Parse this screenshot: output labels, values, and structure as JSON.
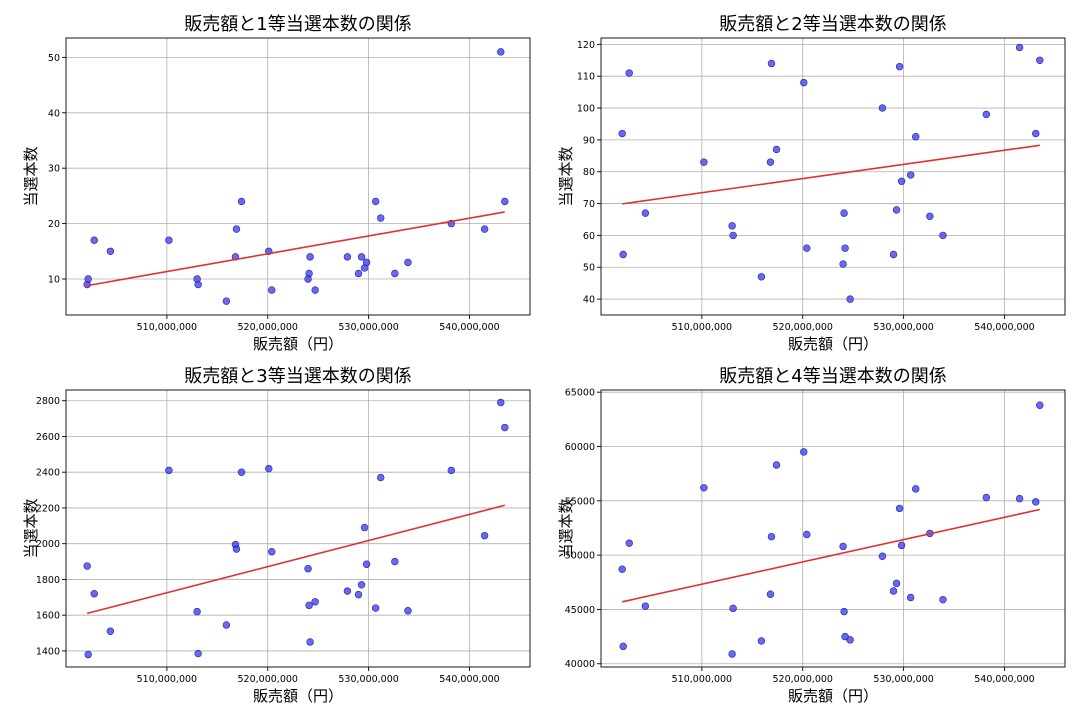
{
  "figure": {
    "xlabel": "販売額（円）",
    "ylabel": "当選本数",
    "point_color": "#3f3fe6",
    "line_color": "#e03030",
    "grid_color": "#b0b0b0"
  },
  "chart_data": [
    {
      "type": "scatter",
      "title": "販売額と1等当選本数の関係",
      "xlabel": "販売額（円）",
      "ylabel": "当選本数",
      "xlim": [
        500000000,
        546000000
      ],
      "ylim": [
        3.5,
        53.5
      ],
      "xticks": [
        510000000,
        520000000,
        530000000,
        540000000
      ],
      "xtick_labels": [
        "510,000,000",
        "520,000,000",
        "530,000,000",
        "540,000,000"
      ],
      "yticks": [
        10,
        20,
        30,
        40,
        50
      ],
      "ytick_labels": [
        "10",
        "20",
        "30",
        "40",
        "50"
      ],
      "grid": true,
      "x": [
        502100000,
        502200000,
        502800000,
        504400000,
        510200000,
        513000000,
        513100000,
        515900000,
        516800000,
        516900000,
        517400000,
        520100000,
        520400000,
        524000000,
        524100000,
        524200000,
        524700000,
        527900000,
        529000000,
        529300000,
        529600000,
        529800000,
        530700000,
        531200000,
        532600000,
        533900000,
        538200000,
        541500000,
        543100000,
        543500000
      ],
      "y": [
        9,
        10,
        17,
        15,
        17,
        10,
        9,
        6,
        14,
        19,
        24,
        15,
        8,
        10,
        11,
        14,
        8,
        14,
        11,
        14,
        12,
        13,
        24,
        21,
        11,
        13,
        20,
        19,
        51,
        24
      ],
      "trend": {
        "x0": 502100000,
        "y0": 8.8,
        "x1": 543500000,
        "y1": 22.1
      }
    },
    {
      "type": "scatter",
      "title": "販売額と2等当選本数の関係",
      "xlabel": "販売額（円）",
      "ylabel": "当選本数",
      "xlim": [
        500000000,
        546000000
      ],
      "ylim": [
        35,
        122
      ],
      "xticks": [
        510000000,
        520000000,
        530000000,
        540000000
      ],
      "xtick_labels": [
        "510,000,000",
        "520,000,000",
        "530,000,000",
        "540,000,000"
      ],
      "yticks": [
        40,
        50,
        60,
        70,
        80,
        90,
        100,
        110,
        120
      ],
      "ytick_labels": [
        "40",
        "50",
        "60",
        "70",
        "80",
        "90",
        "100",
        "110",
        "120"
      ],
      "grid": true,
      "x": [
        502100000,
        502200000,
        502800000,
        504400000,
        510200000,
        513000000,
        513100000,
        515900000,
        516800000,
        516900000,
        517400000,
        520100000,
        520400000,
        524000000,
        524100000,
        524200000,
        524700000,
        527900000,
        529000000,
        529300000,
        529600000,
        529800000,
        530700000,
        531200000,
        532600000,
        533900000,
        538200000,
        541500000,
        543100000,
        543500000
      ],
      "y": [
        92,
        54,
        111,
        67,
        83,
        63,
        60,
        47,
        83,
        114,
        87,
        108,
        56,
        51,
        67,
        56,
        40,
        100,
        54,
        68,
        113,
        77,
        79,
        91,
        66,
        60,
        98,
        119,
        92,
        115
      ],
      "trend": {
        "x0": 502100000,
        "y0": 69.9,
        "x1": 543500000,
        "y1": 88.3
      }
    },
    {
      "type": "scatter",
      "title": "販売額と3等当選本数の関係",
      "xlabel": "販売額（円）",
      "ylabel": "当選本数",
      "xlim": [
        500000000,
        546000000
      ],
      "ylim": [
        1310,
        2860
      ],
      "xticks": [
        510000000,
        520000000,
        530000000,
        540000000
      ],
      "xtick_labels": [
        "510,000,000",
        "520,000,000",
        "530,000,000",
        "540,000,000"
      ],
      "yticks": [
        1400,
        1600,
        1800,
        2000,
        2200,
        2400,
        2600,
        2800
      ],
      "ytick_labels": [
        "1400",
        "1600",
        "1800",
        "2000",
        "2200",
        "2400",
        "2600",
        "2800"
      ],
      "grid": true,
      "x": [
        502100000,
        502200000,
        502800000,
        504400000,
        510200000,
        513000000,
        513100000,
        515900000,
        516800000,
        516900000,
        517400000,
        520100000,
        520400000,
        524000000,
        524100000,
        524200000,
        524700000,
        527900000,
        529000000,
        529300000,
        529600000,
        529800000,
        530700000,
        531200000,
        532600000,
        533900000,
        538200000,
        541500000,
        543100000,
        543500000
      ],
      "y": [
        1875,
        1380,
        1720,
        1510,
        2410,
        1620,
        1385,
        1545,
        1995,
        1970,
        2400,
        2420,
        1955,
        1860,
        1655,
        1450,
        1675,
        1735,
        1715,
        1770,
        2090,
        1885,
        1640,
        2370,
        1900,
        1625,
        2410,
        2045,
        2790,
        2650
      ],
      "trend": {
        "x0": 502100000,
        "y0": 1610,
        "x1": 543500000,
        "y1": 2215
      }
    },
    {
      "type": "scatter",
      "title": "販売額と4等当選本数の関係",
      "xlabel": "販売額（円）",
      "ylabel": "当選本数",
      "xlim": [
        500000000,
        546000000
      ],
      "ylim": [
        39700,
        65200
      ],
      "xticks": [
        510000000,
        520000000,
        530000000,
        540000000
      ],
      "xtick_labels": [
        "510,000,000",
        "520,000,000",
        "530,000,000",
        "540,000,000"
      ],
      "yticks": [
        40000,
        45000,
        50000,
        55000,
        60000,
        65000
      ],
      "ytick_labels": [
        "40000",
        "45000",
        "50000",
        "55000",
        "60000",
        "65000"
      ],
      "grid": true,
      "x": [
        502100000,
        502200000,
        502800000,
        504400000,
        510200000,
        513000000,
        513100000,
        515900000,
        516800000,
        516900000,
        517400000,
        520100000,
        520400000,
        524000000,
        524100000,
        524200000,
        524700000,
        527900000,
        529000000,
        529300000,
        529600000,
        529800000,
        530700000,
        531200000,
        532600000,
        533900000,
        538200000,
        541500000,
        543100000,
        543500000
      ],
      "y": [
        48700,
        41600,
        51100,
        45300,
        56200,
        40900,
        45100,
        42100,
        46400,
        51700,
        58300,
        59500,
        51900,
        50800,
        44800,
        42500,
        42200,
        49900,
        46700,
        47400,
        54300,
        50900,
        46100,
        56100,
        52000,
        45900,
        55300,
        55200,
        54900,
        63800
      ],
      "trend": {
        "x0": 502100000,
        "y0": 45700,
        "x1": 543500000,
        "y1": 54200
      }
    }
  ]
}
